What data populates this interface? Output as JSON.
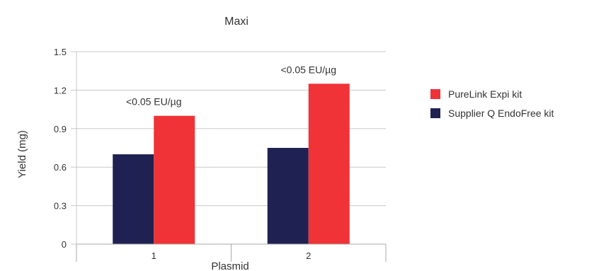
{
  "chart_data": {
    "type": "bar",
    "title": "Maxi",
    "xlabel": "Plasmid",
    "ylabel": "Yield (mg)",
    "categories": [
      "1",
      "2"
    ],
    "ylim": [
      0,
      1.5
    ],
    "yticks": [
      "0",
      "0.3",
      "0.6",
      "0.9",
      "1.2",
      "1.5"
    ],
    "grid": true,
    "legend_position": "right",
    "series": [
      {
        "name": "Supplier Q EndoFree kit",
        "color": "#1f2152",
        "values": [
          0.7,
          0.75
        ]
      },
      {
        "name": "PureLink Expi kit",
        "color": "#ef3337",
        "values": [
          1.0,
          1.25
        ]
      }
    ],
    "annotations": [
      "<0.05 EU/µg",
      "<0.05 EU/µg"
    ]
  }
}
